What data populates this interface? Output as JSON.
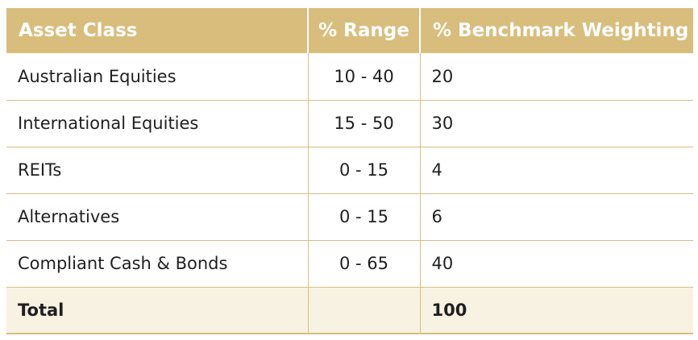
{
  "table": {
    "headers": {
      "asset_class": "Asset Class",
      "range": "% Range",
      "benchmark": "% Benchmark Weighting"
    },
    "rows": [
      {
        "asset_class": "Australian Equities",
        "range": "10 - 40",
        "benchmark": "20"
      },
      {
        "asset_class": "International Equities",
        "range": "15 - 50",
        "benchmark": "30"
      },
      {
        "asset_class": "REITs",
        "range": "0 - 15",
        "benchmark": "4"
      },
      {
        "asset_class": "Alternatives",
        "range": "0 - 15",
        "benchmark": "6"
      },
      {
        "asset_class": "Compliant Cash & Bonds",
        "range": "0 - 65",
        "benchmark": "40"
      }
    ],
    "total": {
      "label": "Total",
      "range": "",
      "benchmark": "100"
    }
  },
  "colors": {
    "header_bg": "#d9bd7c",
    "header_text": "#ffffff",
    "total_bg": "#f8f2e3",
    "grid_line": "#d9bd7c"
  }
}
